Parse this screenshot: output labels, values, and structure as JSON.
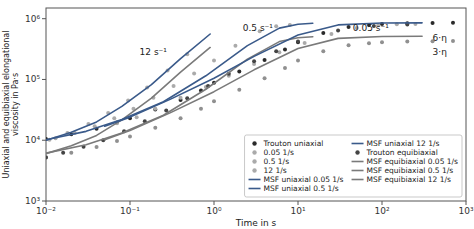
{
  "chart_data": {
    "type": "line",
    "xlabel": "Time in s",
    "ylabel": "Uniaxial and equibiaxial elongational\nviscosity in Pa·s",
    "log": true,
    "grid": false,
    "legend": "lower right",
    "xlim": [
      0.01,
      1000
    ],
    "ylim": [
      1000,
      1500000
    ],
    "xticks": [
      {
        "value": 0.01,
        "label": "10⁻²"
      },
      {
        "value": 0.1,
        "label": "10⁻¹"
      },
      {
        "value": 1,
        "label": "10⁰"
      },
      {
        "value": 10,
        "label": "10¹"
      },
      {
        "value": 100,
        "label": "10²"
      },
      {
        "value": 1000,
        "label": "10³"
      }
    ],
    "yticks": [
      {
        "value": 1000,
        "label": "10³"
      },
      {
        "value": 10000,
        "label": "10⁴"
      },
      {
        "value": 100000,
        "label": "10⁵"
      },
      {
        "value": 1000000,
        "label": "10⁶"
      }
    ],
    "annotations": [
      {
        "text": "12 s⁻¹",
        "x": 0.13,
        "y": 280000
      },
      {
        "text": "0.5 s⁻¹",
        "x": 2.2,
        "y": 680000
      },
      {
        "text": "0.05 s⁻¹",
        "x": 45,
        "y": 680000
      },
      {
        "text": "6·η",
        "x": 400,
        "y": 480000
      },
      {
        "text": "3·η",
        "x": 400,
        "y": 280000
      }
    ],
    "series": [
      {
        "name": "Trouton uniaxial",
        "type": "scatter",
        "marker": "dot",
        "color": "#2a2a2a",
        "x": [
          0.01,
          0.02,
          0.04,
          0.07,
          0.1,
          0.2,
          0.4,
          0.7,
          1.0,
          2.0,
          4.0,
          7.0,
          10,
          20,
          40,
          70,
          100,
          200,
          400,
          700
        ],
        "values": [
          10500,
          12500,
          15500,
          19500,
          23000,
          32000,
          46000,
          66000,
          88000,
          135000,
          210000,
          310000,
          410000,
          580000,
          730000,
          790000,
          820000,
          840000,
          850000,
          855000
        ]
      },
      {
        "type": "scatter",
        "marker": "dot",
        "color": "#909090",
        "x": [
          0.01,
          0.02,
          0.04,
          0.07,
          0.1,
          0.2,
          0.4,
          0.7,
          1.0,
          2.0,
          4.0,
          7.0,
          10,
          20,
          40,
          70,
          100,
          200,
          400,
          700
        ],
        "values": [
          5250,
          6250,
          7750,
          9750,
          11500,
          16000,
          23000,
          33000,
          44000,
          67500,
          105000,
          155000,
          205000,
          290000,
          365000,
          395000,
          410000,
          420000,
          425000,
          428000
        ]
      },
      {
        "name": "0.05 1/s",
        "type": "scatter",
        "marker": "dot",
        "color": "#aaaaaa",
        "x": [
          0.07,
          0.12,
          0.2,
          0.4,
          0.8,
          1.5,
          3.0,
          6.0,
          12,
          25,
          50,
          90,
          150,
          250
        ],
        "values": [
          19000,
          24000,
          33000,
          50000,
          75000,
          115000,
          180000,
          280000,
          400000,
          560000,
          700000,
          780000,
          810000,
          820000
        ]
      },
      {
        "name": "0.5 1/s",
        "type": "scatter",
        "marker": "dot",
        "color": "#aaaaaa",
        "x": [
          0.013,
          0.022,
          0.038,
          0.065,
          0.11,
          0.19,
          0.33,
          0.58,
          1.0,
          1.8,
          3.5,
          5.5,
          8.0
        ],
        "values": [
          10800,
          13200,
          17000,
          23000,
          33000,
          50000,
          78000,
          125000,
          205000,
          360000,
          620000,
          750000,
          790000
        ]
      },
      {
        "name": "12 1/s",
        "type": "scatter",
        "marker": "dot",
        "color": "#aaaaaa",
        "x": [
          0.011,
          0.018,
          0.032,
          0.055,
          0.095,
          0.16,
          0.28,
          0.48
        ],
        "values": [
          10200,
          13200,
          18500,
          28000,
          45000,
          74000,
          140000,
          260000
        ]
      },
      {
        "name": "MSF uniaxial 0.05 1/s",
        "type": "line",
        "line_style": "solid",
        "color": "#3a5a8a",
        "x": [
          0.05,
          0.1,
          0.3,
          1.0,
          3.0,
          10,
          30,
          100,
          300
        ],
        "values": [
          17000,
          24000,
          47000,
          105000,
          240000,
          540000,
          790000,
          850000,
          855000
        ]
      },
      {
        "name": "MSF uniaxial 0.5 1/s",
        "type": "line",
        "line_style": "solid",
        "color": "#3a5a8a",
        "x": [
          0.01,
          0.03,
          0.08,
          0.25,
          0.8,
          2.5,
          6.0,
          10,
          15
        ],
        "values": [
          10200,
          14000,
          22000,
          43000,
          115000,
          360000,
          700000,
          810000,
          840000
        ]
      },
      {
        "name": "MSF uniaxial 12 1/s",
        "type": "line",
        "line_style": "solid",
        "color": "#3a5a8a",
        "x": [
          0.01,
          0.02,
          0.04,
          0.08,
          0.18,
          0.4,
          0.9
        ],
        "values": [
          10000,
          13500,
          20000,
          36000,
          82000,
          220000,
          560000
        ]
      },
      {
        "name": "Trouton equibiaxial",
        "type": "scatter",
        "marker": "dot",
        "color": "#444444",
        "x": [
          0.01,
          0.016,
          0.028,
          0.048,
          0.085,
          0.15,
          0.27,
          0.48,
          0.85,
          1.5,
          3.0,
          5.5,
          10,
          30,
          80,
          200
        ],
        "values": [
          5200,
          6200,
          7800,
          10000,
          14000,
          20500,
          31000,
          49000,
          78000,
          124000,
          200000,
          290000,
          420000,
          640000,
          760000,
          800000
        ]
      },
      {
        "name": "MSF equibiaxial 0.05 1/s",
        "type": "line",
        "line_style": "solid",
        "color": "#7a7a7a",
        "x": [
          0.05,
          0.1,
          0.3,
          1.0,
          3.0,
          10,
          30,
          100,
          300
        ],
        "values": [
          10200,
          14400,
          28200,
          63000,
          144000,
          324000,
          474000,
          510000,
          513000
        ]
      },
      {
        "name": "MSF equibiaxial 0.5 1/s",
        "type": "line",
        "line_style": "solid",
        "color": "#7a7a7a",
        "x": [
          0.01,
          0.03,
          0.08,
          0.25,
          0.8,
          2.5,
          6.0,
          10,
          15
        ],
        "values": [
          6120,
          8400,
          13200,
          25800,
          69000,
          216000,
          420000,
          486000,
          504000
        ]
      },
      {
        "name": "MSF equibiaxial 12 1/s",
        "type": "line",
        "line_style": "solid",
        "color": "#7a7a7a",
        "x": [
          0.01,
          0.02,
          0.04,
          0.08,
          0.18,
          0.4,
          0.9
        ],
        "values": [
          6000,
          8100,
          12000,
          21600,
          49200,
          132000,
          336000
        ]
      }
    ]
  }
}
